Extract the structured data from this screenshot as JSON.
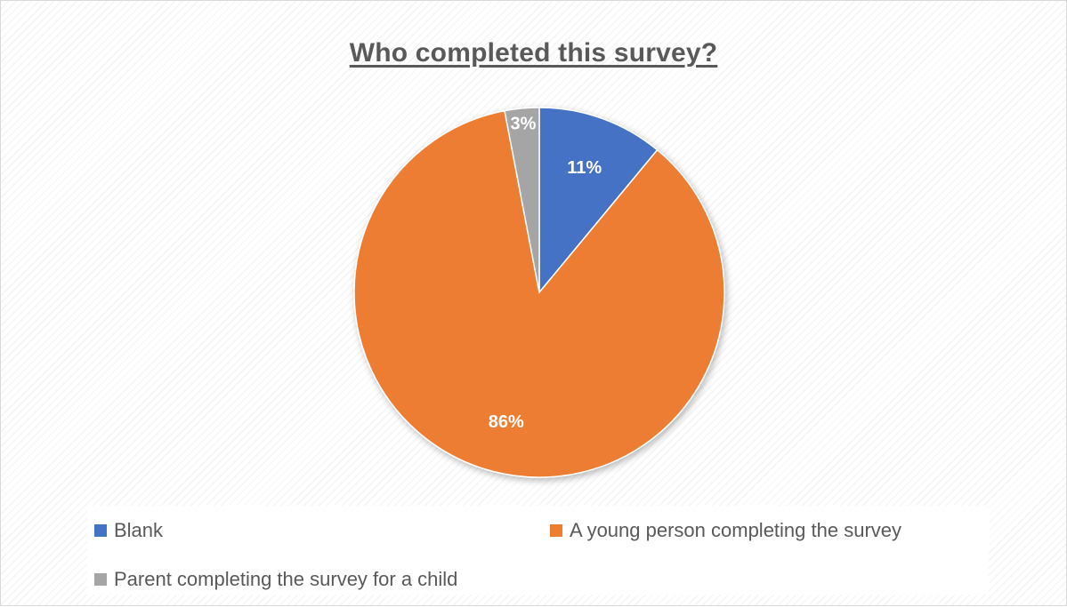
{
  "chart_data": {
    "type": "pie",
    "title": "Who completed this survey?",
    "slices": [
      {
        "name": "Blank",
        "value": 11,
        "label": "11%",
        "color": "#4472C4"
      },
      {
        "name": "A young person completing the survey",
        "value": 86,
        "label": "86%",
        "color": "#ED7D31"
      },
      {
        "name": "Parent completing the survey for a child",
        "value": 3,
        "label": "3%",
        "color": "#A5A5A5"
      }
    ],
    "legend_position": "bottom"
  }
}
